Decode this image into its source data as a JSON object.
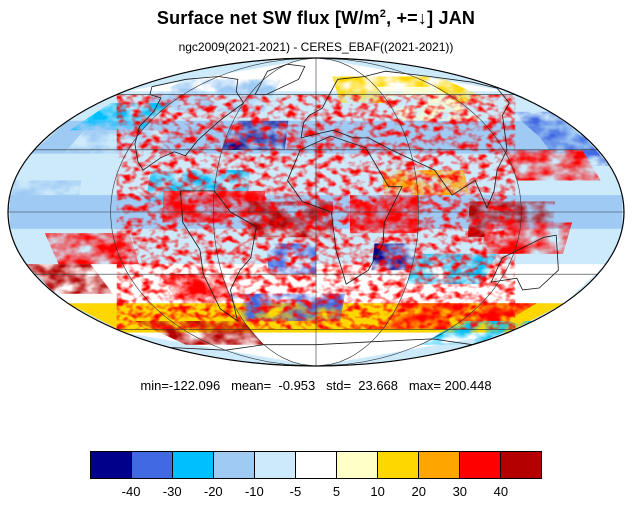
{
  "title": {
    "prefix": "Surface net SW flux [W/m",
    "superscript": "2",
    "suffix": ", +=↓]  JAN"
  },
  "subtitle": "ngc2009(2021-2021) - CERES_EBAF((2021-2021))",
  "stats": {
    "text": "min=-122.096   mean=  -0.953   std=  23.668   max= 200.448",
    "min": -122.096,
    "mean": -0.953,
    "std": 23.668,
    "max": 200.448
  },
  "map": {
    "projection": "mollweide",
    "graticule": true,
    "field": "surface net shortwave flux difference, model minus observation"
  },
  "colorbar": {
    "colors": [
      "#00008b",
      "#4169e1",
      "#00bfff",
      "#9ecaf4",
      "#cdeafb",
      "#ffffff",
      "#ffffc8",
      "#ffd700",
      "#ffa500",
      "#ff0000",
      "#b40000"
    ],
    "labels": [
      "-40",
      "-30",
      "-20",
      "-10",
      "-5",
      "5",
      "10",
      "20",
      "30",
      "40"
    ]
  }
}
